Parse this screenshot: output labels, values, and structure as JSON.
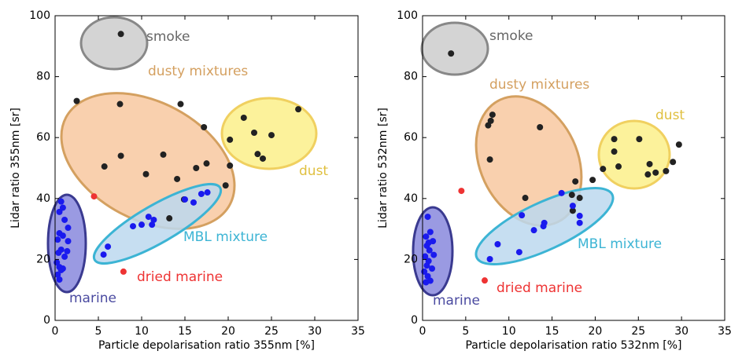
{
  "chart_data": [
    {
      "type": "scatter",
      "xlabel": "Particle depolarisation ratio 355nm [%]",
      "ylabel": "Lidar ratio 355nm [sr]",
      "xlim": [
        0,
        35
      ],
      "ylim": [
        0,
        100
      ],
      "xticks": [
        0,
        5,
        10,
        15,
        20,
        25,
        30,
        35
      ],
      "yticks": [
        0,
        20,
        40,
        60,
        80,
        100
      ],
      "annotations": [
        {
          "text": "smoke",
          "color": "#666666"
        },
        {
          "text": "dusty mixtures",
          "color": "#d4a060"
        },
        {
          "text": "dust",
          "color": "#e0c040"
        },
        {
          "text": "MBL mixture",
          "color": "#3cb4d4"
        },
        {
          "text": "dried marine",
          "color": "#ee3333"
        },
        {
          "text": "marine",
          "color": "#4a4aa0"
        }
      ],
      "series": [
        {
          "color": "#222222",
          "x": [
            7.6,
            2.5,
            7.5,
            14.5,
            5.7,
            7.6,
            10.5,
            12.5,
            14.1,
            16.3,
            17.5,
            17.2,
            14.9,
            13.2,
            19.7,
            20.2,
            20.2,
            21.8,
            23,
            23.4,
            24,
            25,
            28.1
          ],
          "values": [
            94,
            72,
            71,
            71,
            50.5,
            54,
            48,
            54.4,
            46.4,
            50,
            51.5,
            63.4,
            39.7,
            33.5,
            44.3,
            59.3,
            50.8,
            66.5,
            61.6,
            54.6,
            53.1,
            60.8,
            69.3
          ]
        },
        {
          "color": "#1a1aee",
          "x": [
            0.7,
            0.9,
            0.5,
            1.1,
            1.5,
            0.5,
            0.9,
            1.5,
            0.3,
            0.7,
            0.4,
            1.1,
            0.2,
            0.5,
            0.7,
            0.3,
            0.5,
            0.9,
            1.4,
            5.6,
            6.1,
            9,
            10,
            10.8,
            11.4,
            11.2,
            15,
            16,
            16.9,
            17.6
          ],
          "values": [
            39,
            37,
            35.6,
            33,
            30.4,
            28.6,
            27.8,
            26,
            26.5,
            23.2,
            22.2,
            20.9,
            19,
            17.5,
            16.5,
            15,
            13.4,
            17,
            22.7,
            21.6,
            24.2,
            30.9,
            31.4,
            34,
            33,
            31.4,
            39.7,
            38.7,
            41.5,
            42
          ]
        },
        {
          "color": "#ee3333",
          "x": [
            4.5,
            7.9
          ],
          "values": [
            40.7,
            16
          ]
        }
      ]
    },
    {
      "type": "scatter",
      "xlabel": "Particle depolarisation ratio 532nm [%]",
      "ylabel": "Lidar ratio 532nm [sr]",
      "xlim": [
        0,
        35
      ],
      "ylim": [
        0,
        100
      ],
      "xticks": [
        0,
        5,
        10,
        15,
        20,
        25,
        30,
        35
      ],
      "yticks": [
        0,
        20,
        40,
        60,
        80,
        100
      ],
      "annotations": [
        {
          "text": "smoke",
          "color": "#666666"
        },
        {
          "text": "dusty mixtures",
          "color": "#d4a060"
        },
        {
          "text": "dust",
          "color": "#e0c040"
        },
        {
          "text": "MBL mixture",
          "color": "#3cb4d4"
        },
        {
          "text": "dried marine",
          "color": "#ee3333"
        },
        {
          "text": "marine",
          "color": "#4a4aa0"
        }
      ],
      "series": [
        {
          "color": "#222222",
          "x": [
            3.3,
            8.1,
            7.9,
            7.6,
            7.8,
            13.6,
            11.9,
            17.3,
            17.4,
            18.2,
            17.7,
            19.7,
            20.9,
            22.2,
            22.2,
            22.7,
            25.1,
            26.3,
            26.1,
            27,
            28.2,
            29,
            29.7
          ],
          "values": [
            87.6,
            67.5,
            65.5,
            64,
            52.8,
            63.4,
            40.2,
            41.2,
            36,
            40.2,
            45.6,
            46.1,
            49.7,
            59.5,
            55.4,
            50.5,
            59.5,
            51.3,
            47.9,
            48.5,
            49,
            52,
            57.7
          ]
        },
        {
          "color": "#1a1aee",
          "x": [
            0.6,
            0.9,
            0.4,
            1.2,
            0.5,
            0.8,
            1.3,
            0.3,
            0.7,
            0.5,
            1.1,
            0.2,
            0.6,
            0.9,
            0.4,
            0.7,
            7.8,
            8.7,
            11.5,
            11.2,
            12.9,
            14,
            14.1,
            16.1,
            17.4,
            18.2,
            18.2
          ],
          "values": [
            34,
            29,
            27.5,
            26,
            24.5,
            23,
            21.5,
            21,
            19.5,
            18,
            17,
            16,
            14.5,
            13,
            12.5,
            25.5,
            20.1,
            25,
            34.5,
            22.4,
            29.6,
            30.9,
            32,
            41.8,
            37.6,
            34.3,
            32
          ]
        },
        {
          "color": "#ee3333",
          "x": [
            4.5,
            7.2
          ],
          "values": [
            42.5,
            13.1
          ]
        }
      ]
    }
  ]
}
